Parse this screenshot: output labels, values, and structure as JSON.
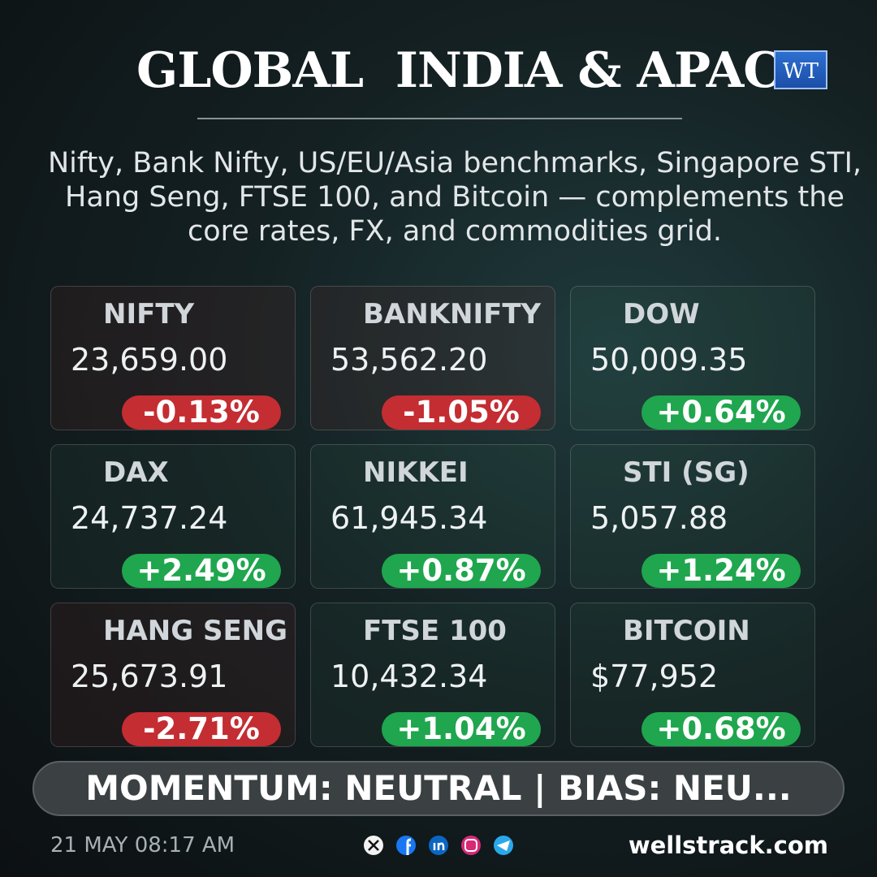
{
  "header": {
    "title": "GLOBAL  INDIA & APAC",
    "logo": "WT",
    "subtitle": "Nifty, Bank Nifty, US/EU/Asia benchmarks, Singapore STI, Hang Seng, FTSE 100, and Bitcoin — complements the core rates, FX, and commodities grid."
  },
  "cards": [
    {
      "name": "NIFTY",
      "price": "23,659.00",
      "change": "-0.13%"
    },
    {
      "name": "BANKNIFTY",
      "price": "53,562.20",
      "change": "-1.05%"
    },
    {
      "name": "DOW",
      "price": "50,009.35",
      "change": "+0.64%"
    },
    {
      "name": "DAX",
      "price": "24,737.24",
      "change": "+2.49%"
    },
    {
      "name": "NIKKEI",
      "price": "61,945.34",
      "change": "+0.87%"
    },
    {
      "name": "STI (SG)",
      "price": "5,057.88",
      "change": "+1.24%"
    },
    {
      "name": "HANG SENG",
      "price": "25,673.91",
      "change": "-2.71%"
    },
    {
      "name": "FTSE 100",
      "price": "10,432.34",
      "change": "+1.04%"
    },
    {
      "name": "BITCOIN",
      "price": "$77,952",
      "change": "+0.68%"
    }
  ],
  "banner": "MOMENTUM: NEUTRAL | BIAS: NEU...",
  "footer": {
    "timestamp": "21 MAY 08:17 AM",
    "site": "wellstrack.com"
  }
}
